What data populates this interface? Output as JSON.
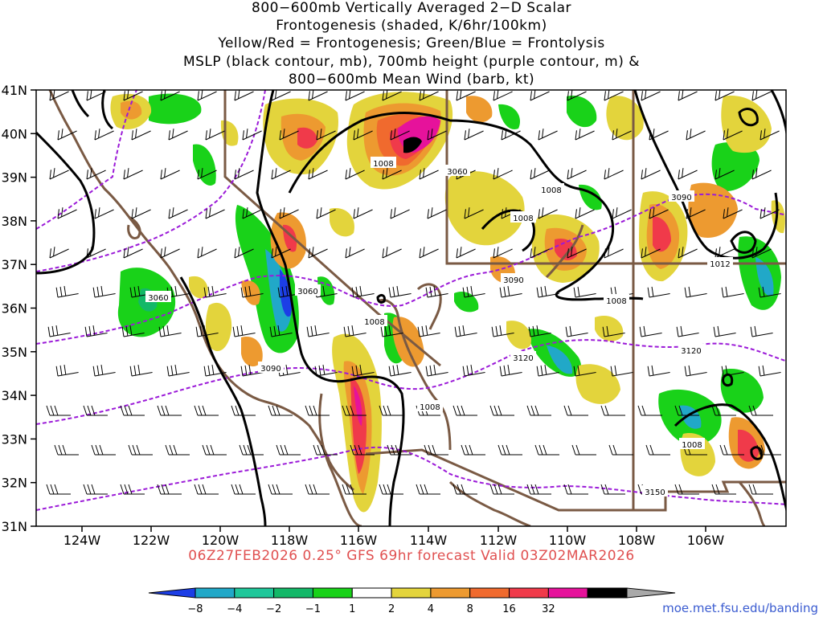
{
  "title": {
    "lines": [
      "800−600mb Vertically Averaged 2−D Scalar",
      "Frontogenesis (shaded, K/6hr/100km)",
      "Yellow/Red = Frontogenesis;  Green/Blue = Frontolysis",
      "MSLP (black contour, mb), 700mb height (purple contour, m) &",
      "800−600mb Mean Wind (barb, kt)"
    ]
  },
  "axes": {
    "lat_labels": [
      "41N",
      "40N",
      "39N",
      "38N",
      "37N",
      "36N",
      "35N",
      "34N",
      "33N",
      "32N",
      "31N"
    ],
    "lon_labels": [
      "124W",
      "122W",
      "120W",
      "118W",
      "116W",
      "114W",
      "112W",
      "110W",
      "108W",
      "106W"
    ]
  },
  "contours": {
    "mslp_labels": [
      "1008",
      "1008",
      "1008",
      "1008",
      "1008",
      "1008",
      "1008",
      "1012"
    ],
    "height_labels": [
      "3060",
      "3060",
      "3060",
      "3090",
      "3090",
      "3090",
      "3120",
      "3120",
      "3150"
    ]
  },
  "colorbar": {
    "ticks": [
      "−8",
      "−4",
      "−2",
      "−1",
      "1",
      "2",
      "4",
      "8",
      "16",
      "32"
    ],
    "colors": [
      "#1c3ee6",
      "#21a8c8",
      "#1fc79a",
      "#13b868",
      "#19d219",
      "#ffffff",
      "#e3d43c",
      "#ed9a30",
      "#f06a2e",
      "#f03a4a",
      "#e6129b",
      "#000000",
      "#a9a9a9"
    ]
  },
  "footer": {
    "caption": "06Z27FEB2026 0.25° GFS 69hr forecast Valid 03Z02MAR2026",
    "site": "moe.met.fsu.edu/banding"
  },
  "colors": {
    "state_border": "#7a5a44",
    "mslp": "#000000",
    "height": "#9b1ad8",
    "caption": "#e05050",
    "site": "#3a5bd0"
  }
}
